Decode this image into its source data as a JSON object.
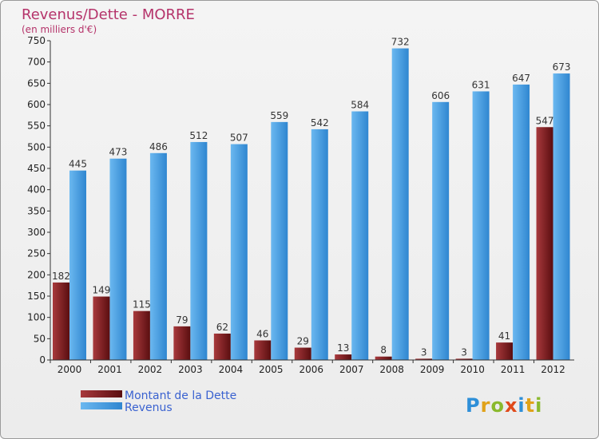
{
  "title": "Revenus/Dette - MORRE",
  "subtitle": "(en milliers d'€)",
  "brand": "Proxiti",
  "colors": {
    "dette": "#7a1f22",
    "revenus": "#4aa0e3",
    "title": "#b5336a",
    "legend_text": "#3a62d0"
  },
  "chart_data": {
    "type": "bar",
    "title": "Revenus/Dette - MORRE",
    "ylabel": "(en milliers d'€)",
    "xlabel": "",
    "ylim": [
      0,
      750
    ],
    "ytick_step": 50,
    "grid": false,
    "legend_position": "bottom-left",
    "categories": [
      "2000",
      "2001",
      "2002",
      "2003",
      "2004",
      "2005",
      "2006",
      "2007",
      "2008",
      "2009",
      "2010",
      "2011",
      "2012"
    ],
    "series": [
      {
        "name": "Montant de la Dette",
        "color": "#7a1f22",
        "values": [
          182,
          149,
          115,
          79,
          62,
          46,
          29,
          13,
          8,
          3,
          3,
          41,
          547
        ]
      },
      {
        "name": "Revenus",
        "color": "#4aa0e3",
        "values": [
          445,
          473,
          486,
          512,
          507,
          559,
          542,
          584,
          732,
          606,
          631,
          647,
          673
        ]
      }
    ]
  }
}
